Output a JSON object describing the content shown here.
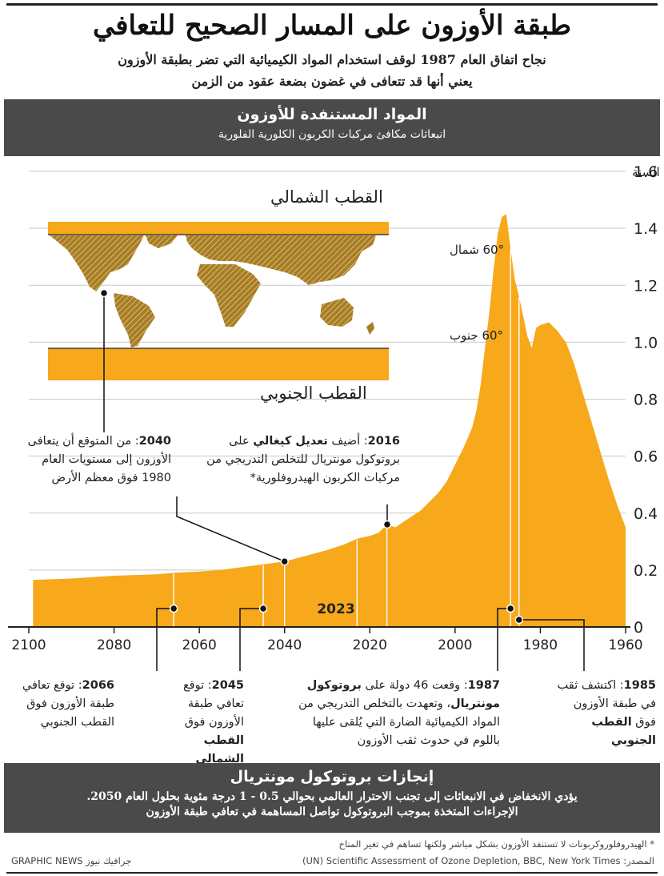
{
  "header": {
    "title": "طبقة الأوزون على المسار الصحيح للتعافي",
    "subtitle_line1": "نجاح اتفاق العام 1987 لوقف استخدام المواد الكيميائية التي تضر بطبقة الأوزون",
    "subtitle_line2": "يعني أنها قد تتعافى في غضون بضعة عقود من الزمن"
  },
  "section": {
    "heading": "المواد المستنفدة للأوزون",
    "subheading": "انبعاثات مكافئ مركبات الكربون الكلورية الفلورية"
  },
  "map": {
    "north_label": "القطب الشمالي",
    "south_label": "القطب الجنوبي",
    "lat_north": "60° شمال",
    "lat_south": "60° جنوب",
    "land_color": "#a77d25"
  },
  "chart_data": {
    "type": "area",
    "ylabel": "مليون طن متري في السنة",
    "ylim": [
      0,
      1.6
    ],
    "yticks": [
      "1.6",
      "1.4",
      "1.2",
      "1.0",
      "0.8",
      "0.6",
      "0.4",
      "0.2",
      "0"
    ],
    "xlim": [
      2100,
      1960
    ],
    "xticks": [
      "2100",
      "2080",
      "2060",
      "2040",
      "2020",
      "2000",
      "1980",
      "1960"
    ],
    "fill_color": "#f7a81b",
    "current_year_label": "2023",
    "x": [
      1960,
      1962,
      1964,
      1966,
      1968,
      1970,
      1972,
      1974,
      1976,
      1978,
      1980,
      1981,
      1982,
      1983,
      1984,
      1985,
      1986,
      1987,
      1988,
      1989,
      1990,
      1991,
      1992,
      1993,
      1994,
      1995,
      1996,
      1998,
      2000,
      2002,
      2004,
      2006,
      2008,
      2010,
      2012,
      2014,
      2016,
      2018,
      2020,
      2023,
      2026,
      2030,
      2035,
      2040,
      2045,
      2050,
      2055,
      2060,
      2066,
      2070,
      2080,
      2090,
      2099
    ],
    "y": [
      0.35,
      0.43,
      0.52,
      0.62,
      0.72,
      0.82,
      0.92,
      1.0,
      1.04,
      1.07,
      1.06,
      1.05,
      0.98,
      1.02,
      1.09,
      1.16,
      1.22,
      1.33,
      1.45,
      1.44,
      1.38,
      1.25,
      1.1,
      0.98,
      0.85,
      0.76,
      0.7,
      0.63,
      0.57,
      0.51,
      0.47,
      0.44,
      0.41,
      0.39,
      0.37,
      0.35,
      0.36,
      0.33,
      0.32,
      0.31,
      0.29,
      0.27,
      0.25,
      0.23,
      0.22,
      0.21,
      0.2,
      0.195,
      0.19,
      0.185,
      0.18,
      0.17,
      0.165
    ]
  },
  "annotations": {
    "y2040_year": "2040",
    "y2040_text": ": من المتوقع أن يتعافى الأوزون إلى مستويات العام 1980 فوق معظم الأرض",
    "y2016_year": "2016",
    "y2016_a": ": أضيف ",
    "y2016_bold": "تعديل كيغالي",
    "y2016_b": " على بروتوكول مونتريال للتخلص التدريجي من مركبات الكربون الهيدروفلورية*",
    "y2066_year": "2066",
    "y2066_text": ": توقع تعافي طبقة الأوزون فوق القطب الجنوبي",
    "y2045_year": "2045",
    "y2045_text": ": توقع تعافي طبقة الأوزون فوق",
    "y2045_bold": "القطب الشمالي",
    "y1987_year": "1987",
    "y1987_a": ": وقعت 46 دولة على ",
    "y1987_bold": "بروتوكول مونتريال",
    "y1987_b": "، وتعهدت بالتخلص التدريجي من المواد الكيميائية الضارة التي يُلقى عليها باللوم في حدوث ثقب الأوزون",
    "y1985_year": "1985",
    "y1985_a": ": اكتشف ثقب في طبقة الأوزون فوق ",
    "y1985_bold": "القطب الجنوبي"
  },
  "footer_band": {
    "heading": "إنجازات بروتوكول مونتريال",
    "line1": "يؤدي الانخفاض في الانبعاثات إلى تجنب الاحترار العالمي بحوالي 0.5 - 1 درجة مئوية بحلول العام 2050.",
    "line2": "الإجراءات المتخذة بموجب البروتوكول تواصل المساهمة في تعافي طبقة الأوزون"
  },
  "footer": {
    "footnote": "* الهيدروفلوروكربونات لا تستنفد الأوزون بشكل مباشر ولكنها تساهم في تغير المناخ",
    "source": "المصدر: UN) Scientific Assessment of Ozone Depletion, BBC, New York Times)",
    "credit": "GRAPHIC NEWS جرافيك نيوز"
  }
}
